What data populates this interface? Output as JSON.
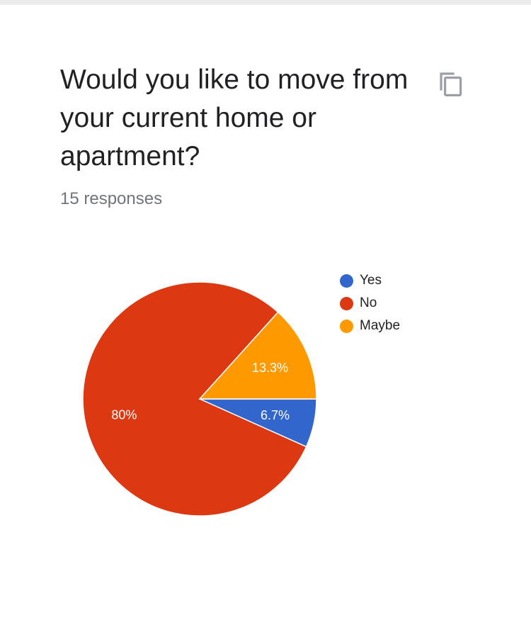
{
  "question": {
    "title": "Would you like to move from your current home or apartment?",
    "responses": "15 responses"
  },
  "icons": {
    "copy": "copy-icon"
  },
  "chart_data": {
    "type": "pie",
    "slices": [
      {
        "label": "Yes",
        "value": 6.7,
        "display": "6.7%",
        "color": "#3366cc"
      },
      {
        "label": "No",
        "value": 80,
        "display": "80%",
        "color": "#dc3912"
      },
      {
        "label": "Maybe",
        "value": 13.3,
        "display": "13.3%",
        "color": "#ff9900"
      }
    ],
    "legend_position": "right"
  }
}
